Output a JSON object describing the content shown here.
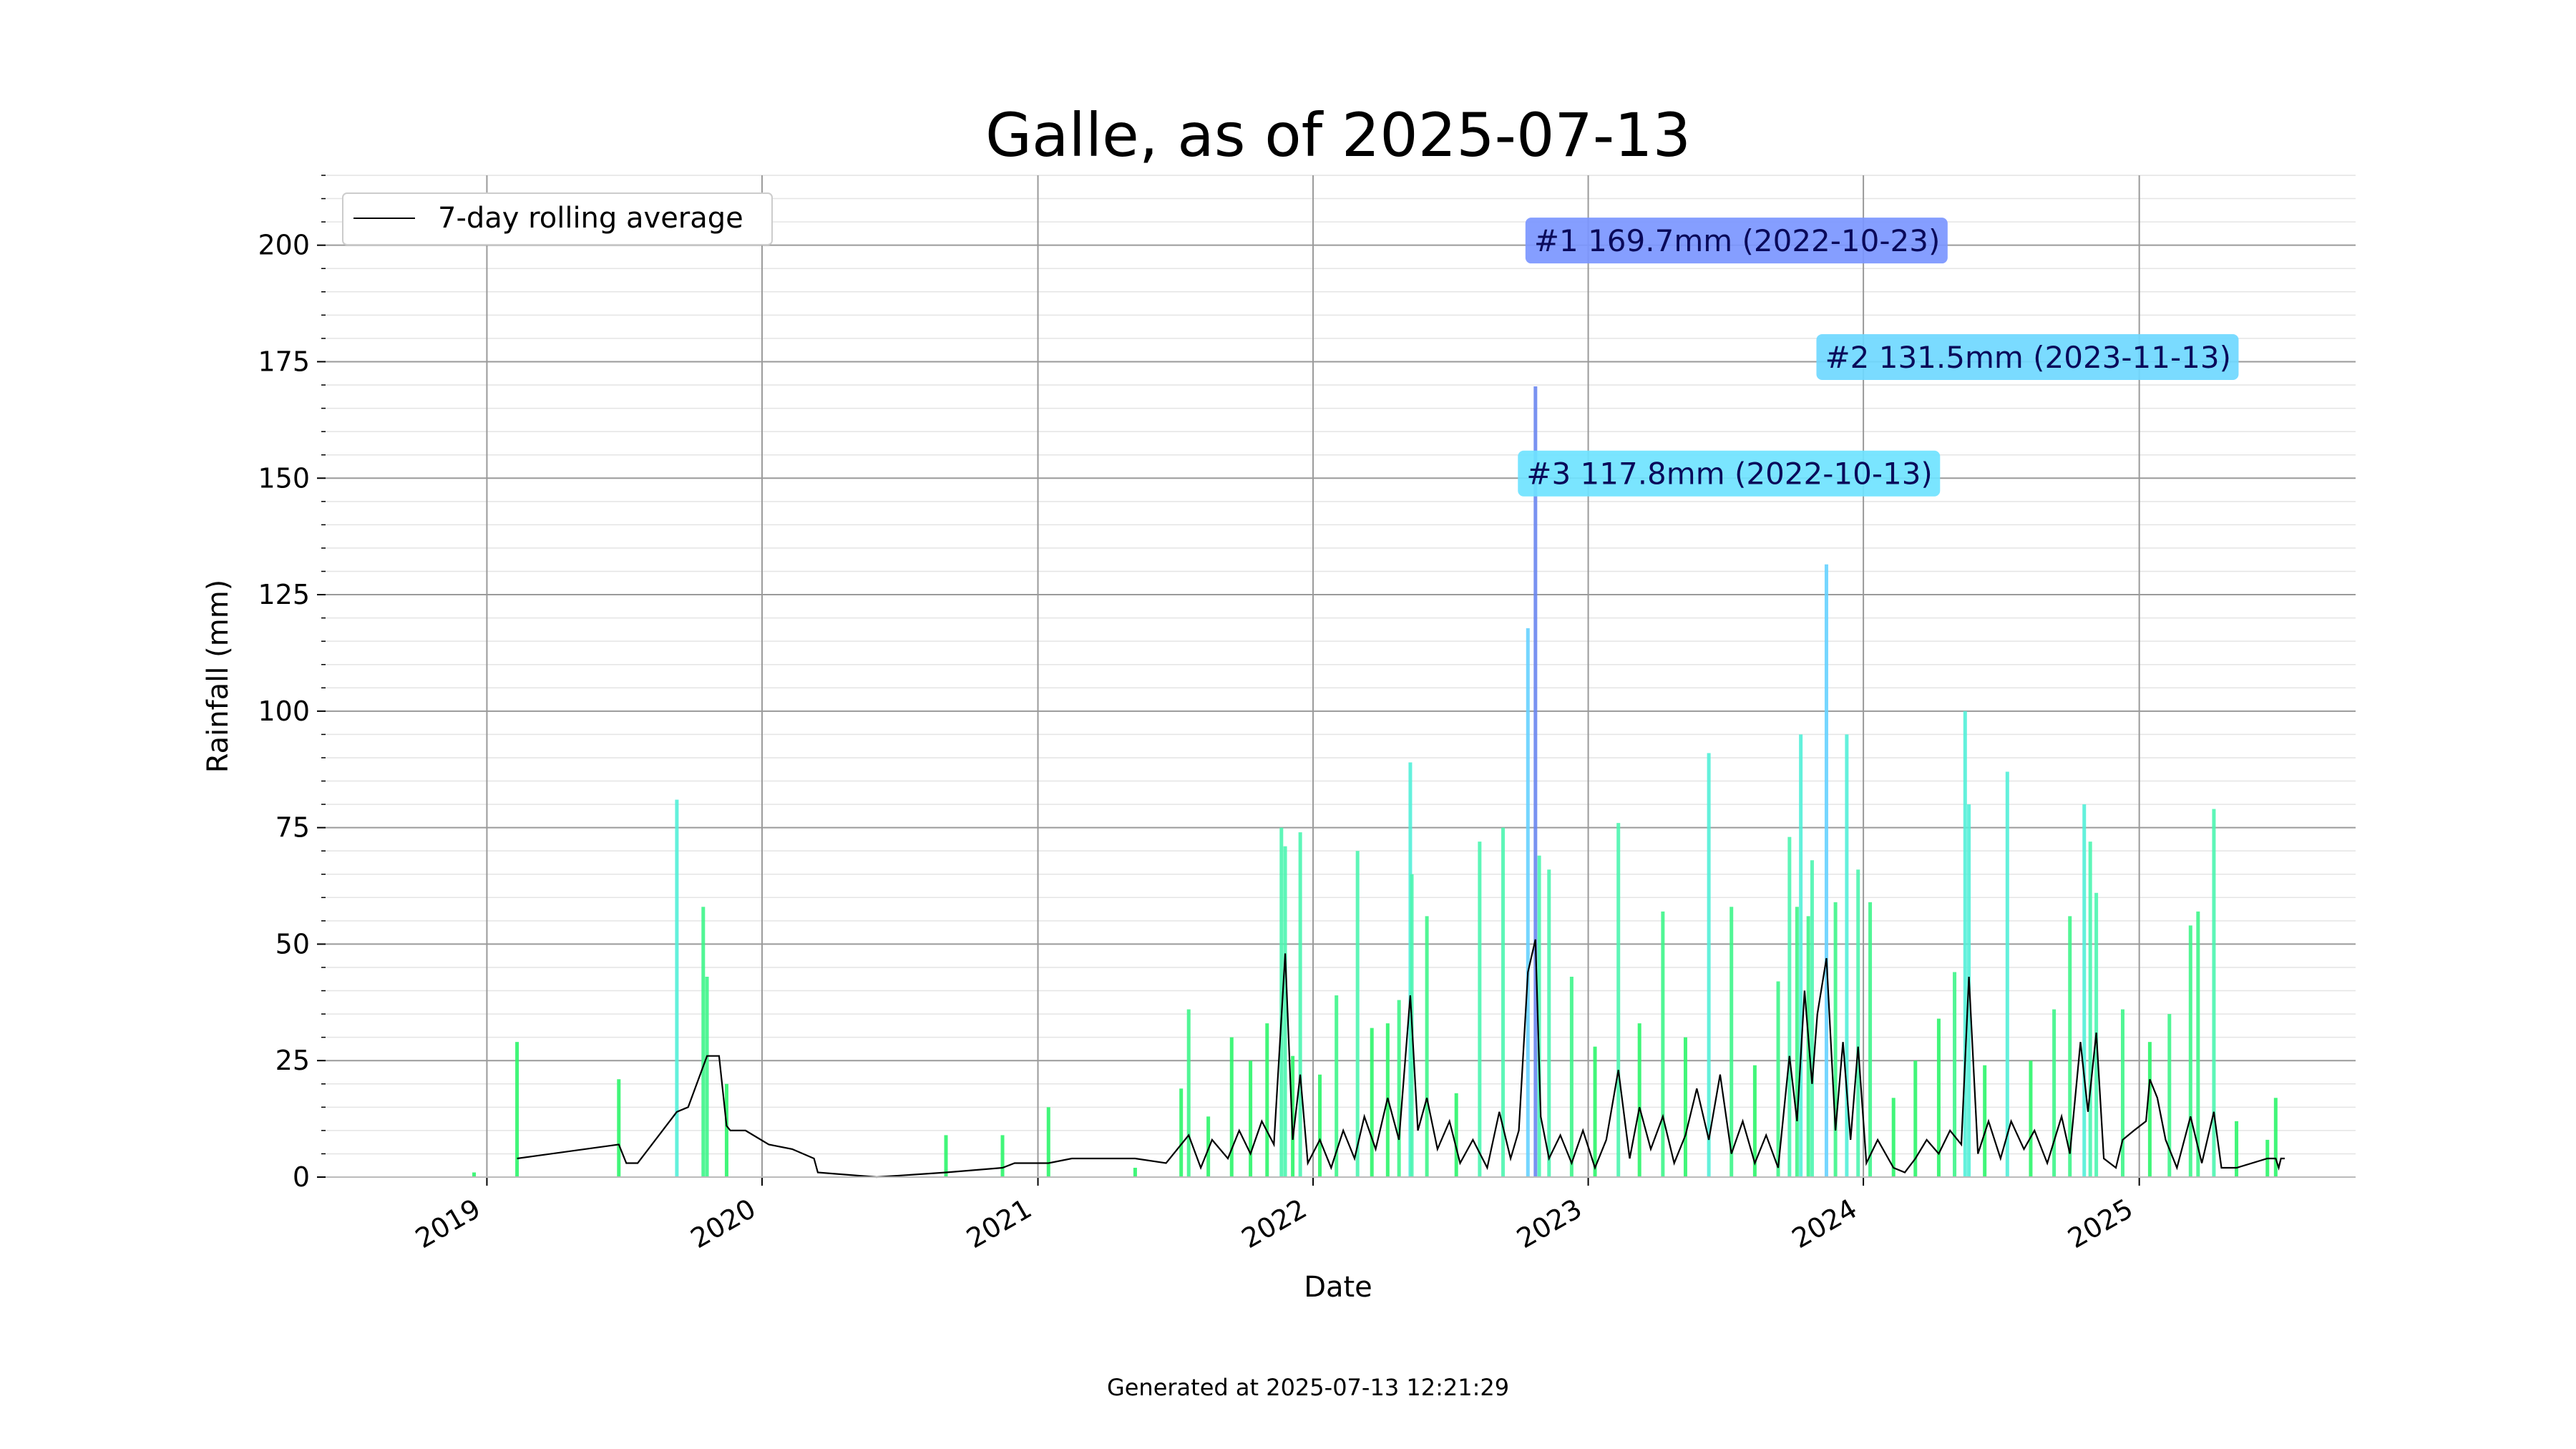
{
  "chart_data": {
    "type": "bar",
    "title": "Galle, as of 2025-07-13",
    "xlabel": "Date",
    "ylabel": "Rainfall (mm)",
    "xlim": [
      "2018-06-01",
      "2025-10-15"
    ],
    "ylim": [
      0,
      215
    ],
    "y_ticks": [
      0,
      25,
      50,
      75,
      100,
      125,
      150,
      175,
      200
    ],
    "x_ticks": [
      {
        "date": "2019-01-01",
        "label": "2019"
      },
      {
        "date": "2020-01-01",
        "label": "2020"
      },
      {
        "date": "2021-01-01",
        "label": "2021"
      },
      {
        "date": "2022-01-01",
        "label": "2022"
      },
      {
        "date": "2023-01-01",
        "label": "2023"
      },
      {
        "date": "2024-01-01",
        "label": "2024"
      },
      {
        "date": "2025-01-01",
        "label": "2025"
      }
    ],
    "grid": true,
    "legend": {
      "position": "top-left",
      "entries": [
        "7-day rolling average"
      ]
    },
    "series": [
      {
        "name": "daily rainfall",
        "kind": "bar",
        "points": [
          [
            "2018-12-15",
            1
          ],
          [
            "2019-02-10",
            29
          ],
          [
            "2019-06-25",
            21
          ],
          [
            "2019-09-10",
            81
          ],
          [
            "2019-10-15",
            58
          ],
          [
            "2019-10-20",
            43
          ],
          [
            "2019-11-15",
            20
          ],
          [
            "2020-09-01",
            9
          ],
          [
            "2020-11-15",
            9
          ],
          [
            "2021-01-15",
            15
          ],
          [
            "2021-05-10",
            2
          ],
          [
            "2021-07-10",
            19
          ],
          [
            "2021-07-20",
            36
          ],
          [
            "2021-08-15",
            13
          ],
          [
            "2021-09-15",
            30
          ],
          [
            "2021-10-10",
            25
          ],
          [
            "2021-11-01",
            33
          ],
          [
            "2021-11-20",
            75
          ],
          [
            "2021-11-25",
            71
          ],
          [
            "2021-12-05",
            26
          ],
          [
            "2021-12-15",
            74
          ],
          [
            "2022-01-10",
            22
          ],
          [
            "2022-02-01",
            39
          ],
          [
            "2022-03-01",
            70
          ],
          [
            "2022-03-20",
            32
          ],
          [
            "2022-04-10",
            33
          ],
          [
            "2022-04-25",
            38
          ],
          [
            "2022-05-10",
            89
          ],
          [
            "2022-05-12",
            65
          ],
          [
            "2022-06-01",
            56
          ],
          [
            "2022-07-10",
            18
          ],
          [
            "2022-08-10",
            72
          ],
          [
            "2022-09-10",
            75
          ],
          [
            "2022-10-13",
            117.8
          ],
          [
            "2022-10-23",
            169.7
          ],
          [
            "2022-10-28",
            69
          ],
          [
            "2022-11-10",
            66
          ],
          [
            "2022-12-10",
            43
          ],
          [
            "2023-01-10",
            28
          ],
          [
            "2023-02-10",
            76
          ],
          [
            "2023-03-10",
            33
          ],
          [
            "2023-04-10",
            57
          ],
          [
            "2023-05-10",
            30
          ],
          [
            "2023-06-10",
            91
          ],
          [
            "2023-07-10",
            58
          ],
          [
            "2023-08-10",
            24
          ],
          [
            "2023-09-10",
            42
          ],
          [
            "2023-09-25",
            73
          ],
          [
            "2023-10-05",
            58
          ],
          [
            "2023-10-10",
            95
          ],
          [
            "2023-10-20",
            56
          ],
          [
            "2023-10-25",
            68
          ],
          [
            "2023-11-13",
            131.5
          ],
          [
            "2023-11-25",
            59
          ],
          [
            "2023-12-10",
            95
          ],
          [
            "2023-12-25",
            66
          ],
          [
            "2024-01-10",
            59
          ],
          [
            "2024-02-10",
            17
          ],
          [
            "2024-03-10",
            25
          ],
          [
            "2024-04-10",
            34
          ],
          [
            "2024-05-01",
            44
          ],
          [
            "2024-05-15",
            100
          ],
          [
            "2024-05-20",
            80
          ],
          [
            "2024-06-10",
            24
          ],
          [
            "2024-07-10",
            87
          ],
          [
            "2024-08-10",
            25
          ],
          [
            "2024-09-10",
            36
          ],
          [
            "2024-10-01",
            56
          ],
          [
            "2024-10-20",
            80
          ],
          [
            "2024-10-28",
            72
          ],
          [
            "2024-11-05",
            61
          ],
          [
            "2024-12-10",
            36
          ],
          [
            "2025-01-15",
            29
          ],
          [
            "2025-02-10",
            35
          ],
          [
            "2025-03-10",
            54
          ],
          [
            "2025-03-20",
            57
          ],
          [
            "2025-04-10",
            79
          ],
          [
            "2025-05-10",
            12
          ],
          [
            "2025-06-20",
            8
          ],
          [
            "2025-07-01",
            17
          ]
        ]
      },
      {
        "name": "7-day rolling average",
        "kind": "line",
        "color": "#000000",
        "points": [
          [
            "2019-02-10",
            4
          ],
          [
            "2019-06-25",
            7
          ],
          [
            "2019-07-05",
            3
          ],
          [
            "2019-07-20",
            3
          ],
          [
            "2019-09-10",
            14
          ],
          [
            "2019-09-25",
            15
          ],
          [
            "2019-10-20",
            26
          ],
          [
            "2019-11-05",
            26
          ],
          [
            "2019-11-15",
            11
          ],
          [
            "2019-11-20",
            10
          ],
          [
            "2019-12-10",
            10
          ],
          [
            "2020-01-10",
            7
          ],
          [
            "2020-02-10",
            6
          ],
          [
            "2020-03-10",
            4
          ],
          [
            "2020-03-15",
            1
          ],
          [
            "2020-06-01",
            0
          ],
          [
            "2020-09-01",
            1
          ],
          [
            "2020-11-15",
            2
          ],
          [
            "2020-12-01",
            3
          ],
          [
            "2021-01-15",
            3
          ],
          [
            "2021-02-15",
            4
          ],
          [
            "2021-05-10",
            4
          ],
          [
            "2021-06-20",
            3
          ],
          [
            "2021-07-05",
            6
          ],
          [
            "2021-07-20",
            9
          ],
          [
            "2021-08-05",
            2
          ],
          [
            "2021-08-20",
            8
          ],
          [
            "2021-09-10",
            4
          ],
          [
            "2021-09-25",
            10
          ],
          [
            "2021-10-10",
            5
          ],
          [
            "2021-10-25",
            12
          ],
          [
            "2021-11-10",
            7
          ],
          [
            "2021-11-25",
            48
          ],
          [
            "2021-12-05",
            8
          ],
          [
            "2021-12-15",
            22
          ],
          [
            "2021-12-25",
            3
          ],
          [
            "2022-01-10",
            8
          ],
          [
            "2022-01-25",
            2
          ],
          [
            "2022-02-10",
            10
          ],
          [
            "2022-02-25",
            4
          ],
          [
            "2022-03-10",
            13
          ],
          [
            "2022-03-25",
            6
          ],
          [
            "2022-04-10",
            17
          ],
          [
            "2022-04-25",
            8
          ],
          [
            "2022-05-10",
            39
          ],
          [
            "2022-05-20",
            10
          ],
          [
            "2022-06-01",
            17
          ],
          [
            "2022-06-15",
            6
          ],
          [
            "2022-07-01",
            12
          ],
          [
            "2022-07-15",
            3
          ],
          [
            "2022-08-01",
            8
          ],
          [
            "2022-08-20",
            2
          ],
          [
            "2022-09-05",
            14
          ],
          [
            "2022-09-20",
            4
          ],
          [
            "2022-10-01",
            10
          ],
          [
            "2022-10-13",
            44
          ],
          [
            "2022-10-23",
            51
          ],
          [
            "2022-10-30",
            13
          ],
          [
            "2022-11-10",
            4
          ],
          [
            "2022-11-25",
            9
          ],
          [
            "2022-12-10",
            3
          ],
          [
            "2022-12-25",
            10
          ],
          [
            "2023-01-10",
            2
          ],
          [
            "2023-01-25",
            8
          ],
          [
            "2023-02-10",
            23
          ],
          [
            "2023-02-25",
            4
          ],
          [
            "2023-03-10",
            15
          ],
          [
            "2023-03-25",
            6
          ],
          [
            "2023-04-10",
            13
          ],
          [
            "2023-04-25",
            3
          ],
          [
            "2023-05-10",
            9
          ],
          [
            "2023-05-25",
            19
          ],
          [
            "2023-06-10",
            8
          ],
          [
            "2023-06-25",
            22
          ],
          [
            "2023-07-10",
            5
          ],
          [
            "2023-07-25",
            12
          ],
          [
            "2023-08-10",
            3
          ],
          [
            "2023-08-25",
            9
          ],
          [
            "2023-09-10",
            2
          ],
          [
            "2023-09-25",
            26
          ],
          [
            "2023-10-05",
            12
          ],
          [
            "2023-10-15",
            40
          ],
          [
            "2023-10-25",
            20
          ],
          [
            "2023-11-01",
            35
          ],
          [
            "2023-11-13",
            47
          ],
          [
            "2023-11-25",
            10
          ],
          [
            "2023-12-05",
            29
          ],
          [
            "2023-12-15",
            8
          ],
          [
            "2023-12-25",
            28
          ],
          [
            "2024-01-05",
            3
          ],
          [
            "2024-01-20",
            8
          ],
          [
            "2024-02-10",
            2
          ],
          [
            "2024-02-25",
            1
          ],
          [
            "2024-03-10",
            4
          ],
          [
            "2024-03-25",
            8
          ],
          [
            "2024-04-10",
            5
          ],
          [
            "2024-04-25",
            10
          ],
          [
            "2024-05-10",
            7
          ],
          [
            "2024-05-20",
            43
          ],
          [
            "2024-06-01",
            5
          ],
          [
            "2024-06-15",
            12
          ],
          [
            "2024-07-01",
            4
          ],
          [
            "2024-07-15",
            12
          ],
          [
            "2024-08-01",
            6
          ],
          [
            "2024-08-15",
            10
          ],
          [
            "2024-09-01",
            3
          ],
          [
            "2024-09-20",
            13
          ],
          [
            "2024-10-01",
            5
          ],
          [
            "2024-10-15",
            29
          ],
          [
            "2024-10-25",
            14
          ],
          [
            "2024-11-05",
            31
          ],
          [
            "2024-11-15",
            4
          ],
          [
            "2024-12-01",
            2
          ],
          [
            "2024-12-10",
            8
          ],
          [
            "2024-12-25",
            10
          ],
          [
            "2025-01-10",
            12
          ],
          [
            "2025-01-15",
            21
          ],
          [
            "2025-01-25",
            17
          ],
          [
            "2025-02-05",
            8
          ],
          [
            "2025-02-20",
            2
          ],
          [
            "2025-03-10",
            13
          ],
          [
            "2025-03-25",
            3
          ],
          [
            "2025-04-10",
            14
          ],
          [
            "2025-04-20",
            2
          ],
          [
            "2025-05-10",
            2
          ],
          [
            "2025-06-20",
            4
          ],
          [
            "2025-07-01",
            4
          ],
          [
            "2025-07-05",
            2
          ],
          [
            "2025-07-08",
            4
          ],
          [
            "2025-07-13",
            4
          ]
        ]
      }
    ],
    "annotations": [
      {
        "text": "#1 169.7mm (2022-10-23)",
        "date": "2022-10-23",
        "value": 169.7,
        "box_color": "#7b96ff",
        "anchor_x": "2022-10-23",
        "label_y": 201
      },
      {
        "text": "#2 131.5mm (2023-11-13)",
        "date": "2023-11-13",
        "value": 131.5,
        "box_color": "#6fd8ff",
        "anchor_x": "2023-11-13",
        "label_y": 176
      },
      {
        "text": "#3 117.8mm (2022-10-13)",
        "date": "2022-10-13",
        "value": 117.8,
        "box_color": "#6fe3ff",
        "anchor_x": "2022-10-13",
        "label_y": 151
      }
    ]
  },
  "footer": {
    "generated_text": "Generated at 2025-07-13 12:21:29"
  }
}
